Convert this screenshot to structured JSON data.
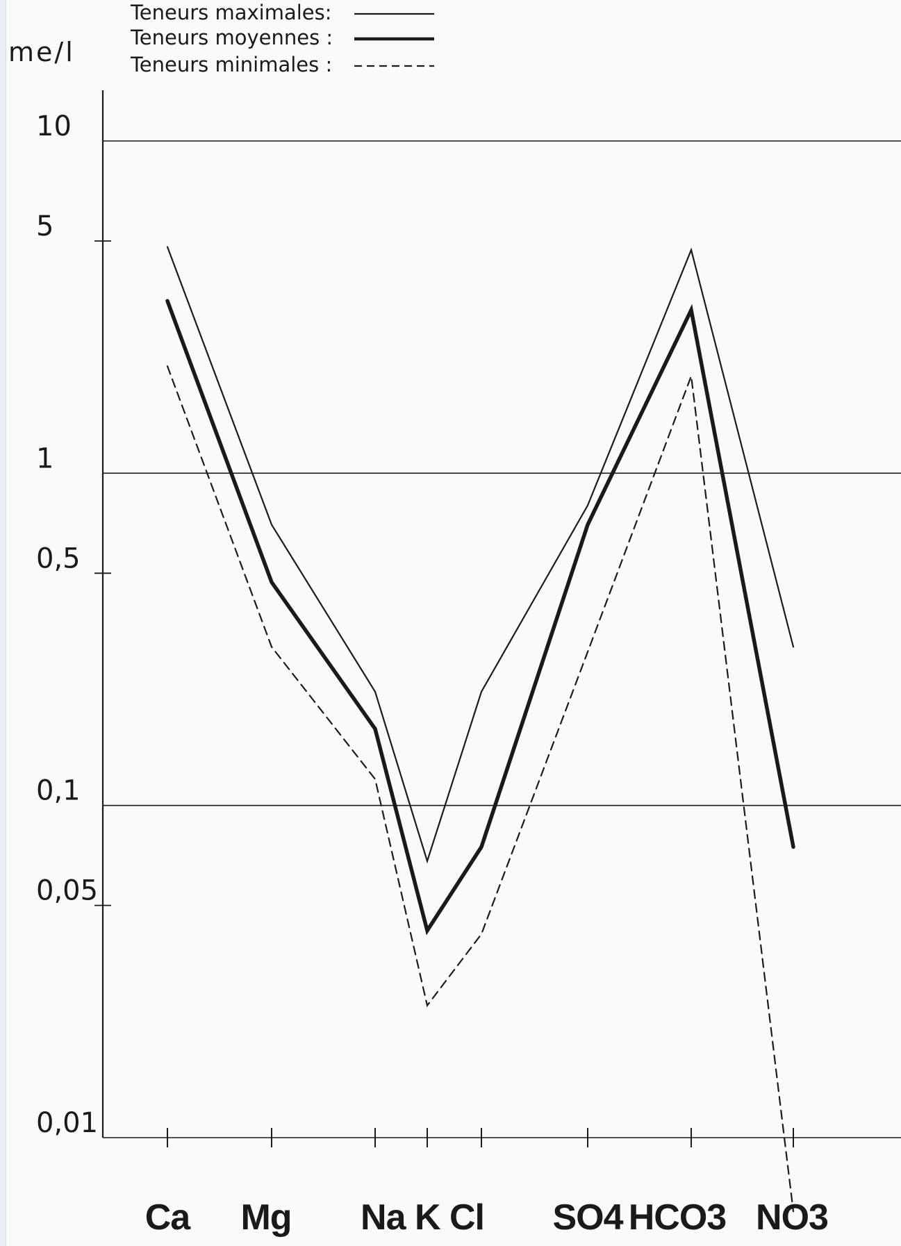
{
  "chart_data": {
    "type": "line",
    "ylabel": "me/l",
    "yscale": "log",
    "ylim": [
      0.01,
      10
    ],
    "y_ticks": [
      {
        "value": 10,
        "label": "10"
      },
      {
        "value": 5,
        "label": "5"
      },
      {
        "value": 1,
        "label": "1"
      },
      {
        "value": 0.5,
        "label": "0,5"
      },
      {
        "value": 0.1,
        "label": "0,1"
      },
      {
        "value": 0.05,
        "label": "0,05"
      },
      {
        "value": 0.01,
        "label": "0,01"
      }
    ],
    "gridlines": [
      10,
      1,
      0.1,
      0.01
    ],
    "categories": [
      "Ca",
      "Mg",
      "Na",
      "K",
      "Cl",
      "SO4",
      "HCO3",
      "NO3"
    ],
    "category_display": [
      "Ca",
      "Mg",
      "Na K Cl",
      "SO4",
      "HCO3",
      "NO3"
    ],
    "legend_position": "top",
    "series": [
      {
        "name": "Teneurs maximales:",
        "style": "thin",
        "values": [
          4.8,
          0.7,
          0.22,
          0.068,
          0.22,
          0.8,
          4.7,
          0.3
        ]
      },
      {
        "name": "Teneurs moyennes :",
        "style": "thick",
        "values": [
          3.3,
          0.47,
          0.17,
          0.042,
          0.075,
          0.7,
          3.1,
          0.075
        ]
      },
      {
        "name": "Teneurs minimales :",
        "style": "dashed",
        "values": [
          2.1,
          0.3,
          0.12,
          0.025,
          0.041,
          0.29,
          1.96,
          0.006
        ]
      }
    ],
    "colors": {
      "ink": "#1a1a1a",
      "paper": "#fafaf8"
    }
  }
}
